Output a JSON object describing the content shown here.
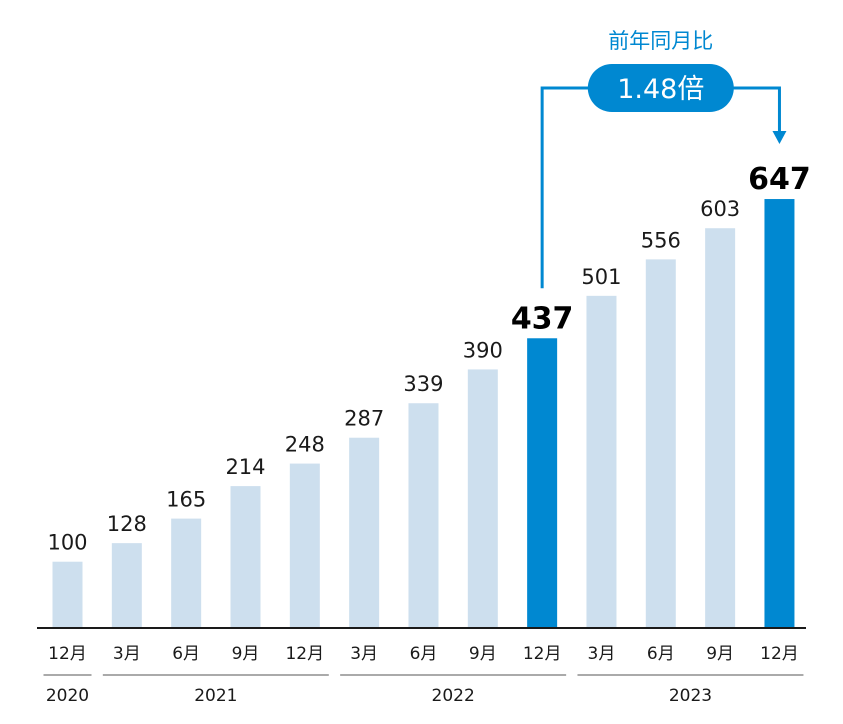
{
  "chart_data": {
    "type": "bar",
    "categories": [
      "12月",
      "3月",
      "6月",
      "9月",
      "12月",
      "3月",
      "6月",
      "9月",
      "12月",
      "3月",
      "6月",
      "9月",
      "12月"
    ],
    "values": [
      100,
      128,
      165,
      214,
      248,
      287,
      339,
      390,
      437,
      501,
      556,
      603,
      647
    ],
    "highlight_indices": [
      8,
      12
    ],
    "years": [
      {
        "label": "2020",
        "start": 0,
        "end": 0
      },
      {
        "label": "2021",
        "start": 1,
        "end": 4
      },
      {
        "label": "2022",
        "start": 5,
        "end": 8
      },
      {
        "label": "2023",
        "start": 9,
        "end": 12
      }
    ],
    "ylim": [
      0,
      700
    ],
    "grid": false,
    "colors": {
      "bar": "#cddfee",
      "highlight": "#0088d1",
      "axis": "#1a1a1a"
    },
    "comparison": {
      "label": "前年同月比",
      "value": "1.48倍",
      "from_index": 8,
      "to_index": 12
    }
  }
}
